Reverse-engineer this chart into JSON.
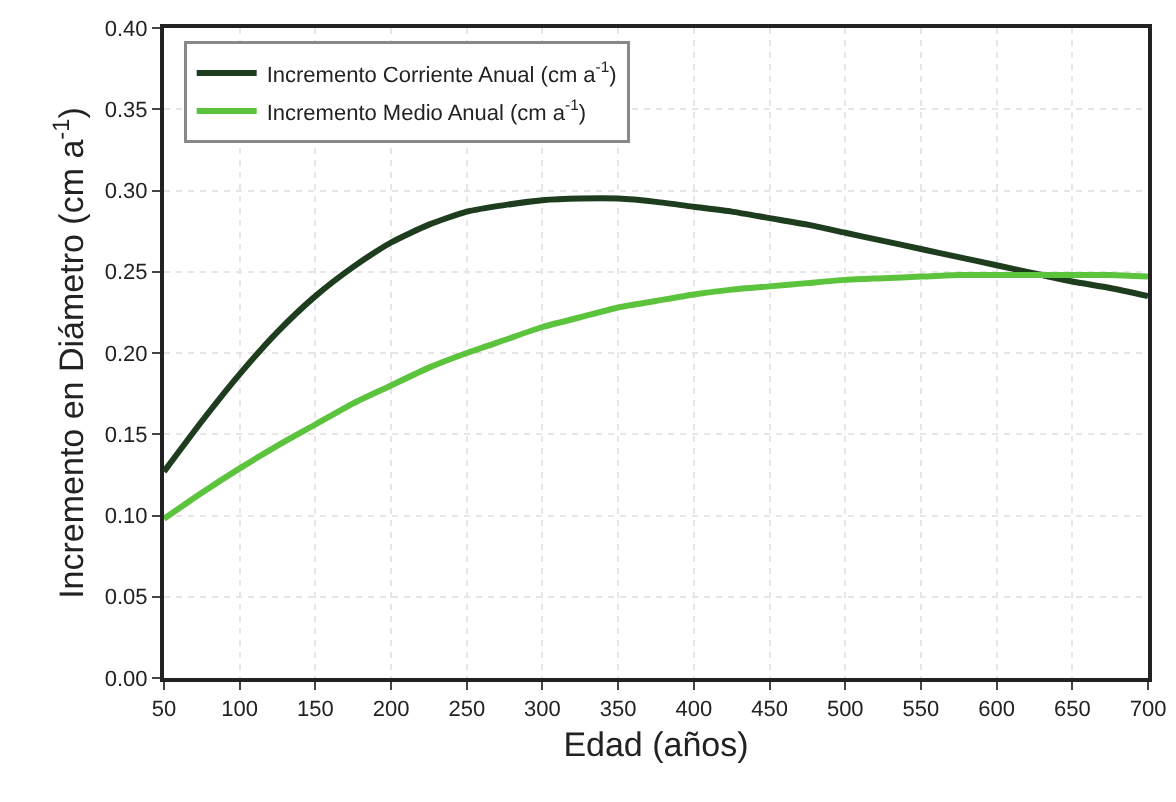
{
  "chart_data": {
    "type": "line",
    "xlabel": "Edad (años)",
    "ylabel": "Incremento en Diámetro (cm a$^{-1}$)",
    "x": [
      50,
      75,
      100,
      125,
      150,
      175,
      200,
      225,
      250,
      275,
      300,
      325,
      350,
      375,
      400,
      425,
      450,
      475,
      500,
      525,
      550,
      575,
      600,
      625,
      650,
      675,
      700
    ],
    "series": [
      {
        "name": "Incremento Corriente Anual (cm a$^{-1}$)",
        "color": "#1e3d1e",
        "values": [
          0.127,
          0.158,
          0.187,
          0.213,
          0.235,
          0.253,
          0.268,
          0.279,
          0.287,
          0.291,
          0.294,
          0.295,
          0.295,
          0.293,
          0.29,
          0.287,
          0.283,
          0.279,
          0.274,
          0.269,
          0.264,
          0.259,
          0.254,
          0.249,
          0.244,
          0.24,
          0.235
        ]
      },
      {
        "name": "Incremento Medio Anual (cm a$^{-1}$)",
        "color": "#5cc33c",
        "values": [
          0.098,
          0.114,
          0.129,
          0.143,
          0.156,
          0.169,
          0.18,
          0.191,
          0.2,
          0.208,
          0.216,
          0.222,
          0.228,
          0.232,
          0.236,
          0.239,
          0.241,
          0.243,
          0.245,
          0.246,
          0.247,
          0.248,
          0.248,
          0.248,
          0.248,
          0.248,
          0.247
        ]
      }
    ],
    "xlim": [
      50,
      700
    ],
    "xticks": [
      50,
      100,
      150,
      200,
      250,
      300,
      350,
      400,
      450,
      500,
      550,
      600,
      650,
      700
    ],
    "ylim": [
      0,
      0.4
    ],
    "yticks": [
      {
        "value": 0,
        "label": "0.00"
      },
      {
        "value": 0.05,
        "label": "0.05"
      },
      {
        "value": 0.1,
        "label": "0.10"
      },
      {
        "value": 0.15,
        "label": "0.15"
      },
      {
        "value": 0.2,
        "label": "0.20"
      },
      {
        "value": 0.25,
        "label": "0.25"
      },
      {
        "value": 0.3,
        "label": "0.30"
      },
      {
        "value": 0.35,
        "label": "0.35"
      },
      {
        "value": 0.4,
        "label": "0.40"
      }
    ],
    "grid": true,
    "legend": "top left",
    "marker": "none",
    "line_style": "solid"
  }
}
